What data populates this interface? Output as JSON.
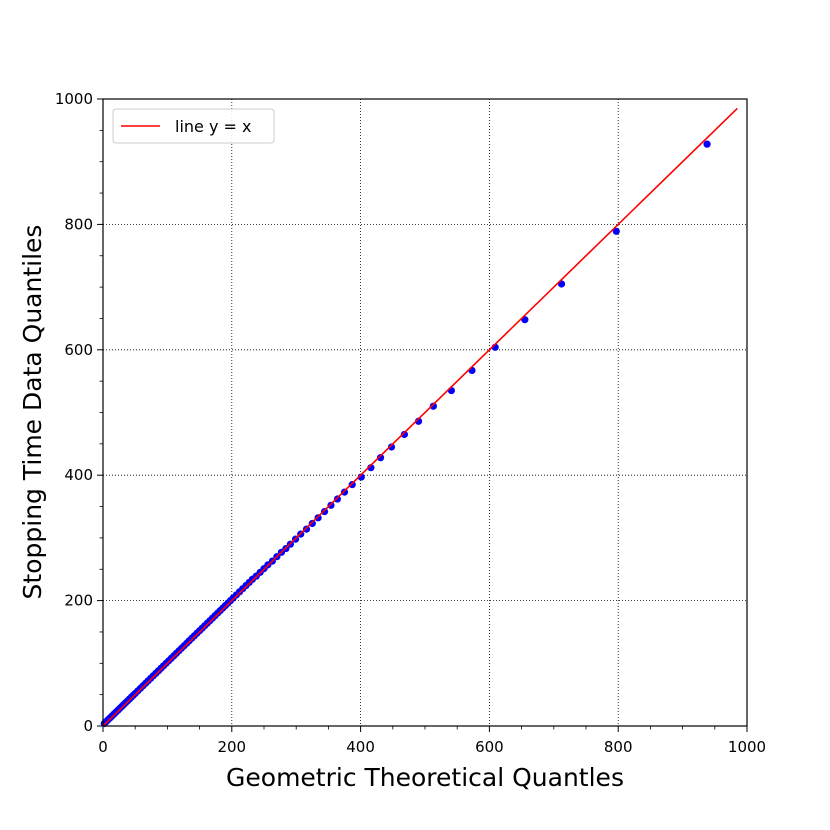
{
  "chart_data": {
    "type": "scatter",
    "title": "",
    "xlabel": "Geometric Theoretical Quantles",
    "ylabel": "Stopping Time Data Quantiles",
    "xlim": [
      0,
      1000
    ],
    "ylim": [
      0,
      1000
    ],
    "xticks": [
      "0",
      "200",
      "400",
      "600",
      "800",
      "1000"
    ],
    "yticks": [
      "0",
      "200",
      "400",
      "600",
      "800",
      "1000"
    ],
    "grid": true,
    "grid_style": "dotted",
    "legend_position": "top-left",
    "legend": [
      {
        "label": "line y = x",
        "color": "#ff0000"
      }
    ],
    "reference_line": {
      "name": "line y = x",
      "x": [
        0,
        985
      ],
      "y": [
        0,
        985
      ],
      "color": "#ff0000"
    },
    "series": [
      {
        "color": "#0000ff",
        "points": [
          [
            2,
            4
          ],
          [
            5,
            7
          ],
          [
            8,
            10
          ],
          [
            11,
            13
          ],
          [
            14,
            16
          ],
          [
            17,
            19
          ],
          [
            20,
            22
          ],
          [
            23,
            25
          ],
          [
            26,
            28
          ],
          [
            29,
            31
          ],
          [
            32,
            34
          ],
          [
            35,
            37
          ],
          [
            38,
            40
          ],
          [
            41,
            43
          ],
          [
            44,
            46
          ],
          [
            47,
            49
          ],
          [
            50,
            52
          ],
          [
            54,
            56
          ],
          [
            58,
            60
          ],
          [
            62,
            64
          ],
          [
            66,
            68
          ],
          [
            70,
            72
          ],
          [
            74,
            76
          ],
          [
            78,
            80
          ],
          [
            82,
            84
          ],
          [
            86,
            88
          ],
          [
            90,
            92
          ],
          [
            94,
            96
          ],
          [
            98,
            100
          ],
          [
            102,
            104
          ],
          [
            106,
            108
          ],
          [
            110,
            112
          ],
          [
            114,
            116
          ],
          [
            118,
            120
          ],
          [
            122,
            124
          ],
          [
            126,
            128
          ],
          [
            130,
            132
          ],
          [
            134,
            136
          ],
          [
            138,
            140
          ],
          [
            142,
            144
          ],
          [
            146,
            148
          ],
          [
            150,
            152
          ],
          [
            154,
            156
          ],
          [
            158,
            160
          ],
          [
            162,
            164
          ],
          [
            166,
            168
          ],
          [
            170,
            172
          ],
          [
            174,
            176
          ],
          [
            178,
            180
          ],
          [
            182,
            184
          ],
          [
            186,
            188
          ],
          [
            190,
            192
          ],
          [
            194,
            196
          ],
          [
            198,
            200
          ],
          [
            202,
            204
          ],
          [
            207,
            209
          ],
          [
            212,
            214
          ],
          [
            217,
            219
          ],
          [
            222,
            224
          ],
          [
            227,
            229
          ],
          [
            232,
            234
          ],
          [
            238,
            239
          ],
          [
            244,
            245
          ],
          [
            250,
            251
          ],
          [
            256,
            257
          ],
          [
            263,
            263
          ],
          [
            270,
            270
          ],
          [
            277,
            277
          ],
          [
            284,
            283
          ],
          [
            291,
            290
          ],
          [
            299,
            298
          ],
          [
            307,
            306
          ],
          [
            316,
            314
          ],
          [
            325,
            323
          ],
          [
            334,
            332
          ],
          [
            344,
            342
          ],
          [
            354,
            352
          ],
          [
            364,
            362
          ],
          [
            375,
            373
          ],
          [
            387,
            385
          ],
          [
            401,
            397
          ],
          [
            416,
            412
          ],
          [
            431,
            428
          ],
          [
            448,
            445
          ],
          [
            468,
            465
          ],
          [
            490,
            486
          ],
          [
            513,
            510
          ],
          [
            541,
            535
          ],
          [
            573,
            567
          ],
          [
            609,
            604
          ],
          [
            655,
            648
          ],
          [
            712,
            705
          ],
          [
            797,
            789
          ],
          [
            938,
            928
          ]
        ]
      }
    ]
  }
}
